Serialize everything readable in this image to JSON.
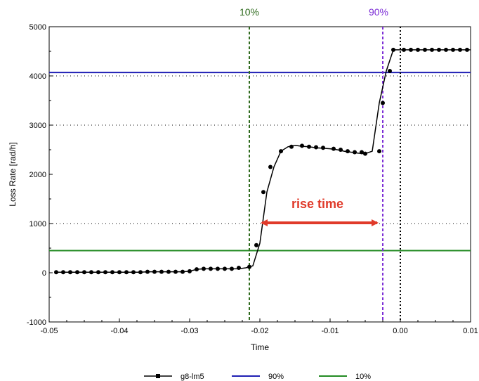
{
  "chart_data": {
    "type": "line",
    "title": "",
    "xlabel": "Time",
    "ylabel": "Loss Rate [rad/h]",
    "xlim": [
      -0.05,
      0.01
    ],
    "ylim": [
      -1000,
      5000
    ],
    "xticks": [
      -0.05,
      -0.04,
      -0.03,
      -0.02,
      -0.01,
      0.0,
      0.01
    ],
    "xtick_labels": [
      "-0.05",
      "-0.04",
      "-0.03",
      "-0.02",
      "-0.01",
      "0.00",
      "0.01"
    ],
    "yticks": [
      -1000,
      0,
      1000,
      2000,
      3000,
      4000,
      5000
    ],
    "ytick_labels": [
      "-1000",
      "0",
      "1000",
      "2000",
      "3000",
      "4000",
      "5000"
    ],
    "grid": "dotted horizontal lines at 1000, 3000 and 4000",
    "legend_position": "bottom-center",
    "series": [
      {
        "name": "g8-lm5",
        "color": "#000000",
        "marker": "circle",
        "x": [
          -0.049,
          -0.048,
          -0.047,
          -0.046,
          -0.045,
          -0.044,
          -0.043,
          -0.042,
          -0.041,
          -0.04,
          -0.039,
          -0.038,
          -0.037,
          -0.036,
          -0.035,
          -0.034,
          -0.033,
          -0.032,
          -0.031,
          -0.03,
          -0.029,
          -0.028,
          -0.027,
          -0.026,
          -0.025,
          -0.024,
          -0.023,
          -0.022,
          -0.021,
          -0.02,
          -0.019,
          -0.018,
          -0.017,
          -0.016,
          -0.015,
          -0.014,
          -0.013,
          -0.012,
          -0.011,
          -0.01,
          -0.009,
          -0.008,
          -0.007,
          -0.006,
          -0.005,
          -0.004,
          -0.003,
          -0.002,
          -0.001,
          0.0,
          0.001,
          0.002,
          0.003,
          0.004,
          0.005,
          0.006,
          0.007,
          0.008,
          0.009,
          0.01
        ],
        "y": [
          10,
          10,
          10,
          10,
          10,
          10,
          10,
          10,
          10,
          10,
          10,
          10,
          10,
          20,
          20,
          20,
          20,
          20,
          20,
          30,
          70,
          80,
          80,
          80,
          80,
          80,
          80,
          100,
          140,
          600,
          1640,
          2150,
          2470,
          2560,
          2590,
          2570,
          2560,
          2540,
          2530,
          2520,
          2500,
          2470,
          2450,
          2430,
          2420,
          2470,
          3450,
          4100,
          4530,
          4530,
          4530,
          4530,
          4530,
          4530,
          4530,
          4530,
          4530,
          4530,
          4530,
          4530
        ],
        "markers_x": [
          -0.049,
          -0.048,
          -0.047,
          -0.046,
          -0.045,
          -0.044,
          -0.043,
          -0.042,
          -0.041,
          -0.04,
          -0.039,
          -0.038,
          -0.037,
          -0.036,
          -0.035,
          -0.034,
          -0.033,
          -0.032,
          -0.031,
          -0.03,
          -0.029,
          -0.028,
          -0.027,
          -0.026,
          -0.025,
          -0.024,
          -0.023,
          -0.0215,
          -0.0205,
          -0.0195,
          -0.0185,
          -0.017,
          -0.0155,
          -0.014,
          -0.013,
          -0.012,
          -0.011,
          -0.0095,
          -0.0085,
          -0.0075,
          -0.0065,
          -0.0055,
          -0.005,
          -0.003,
          -0.0025,
          -0.0015,
          -0.001,
          0.0005,
          0.0015,
          0.0025,
          0.0035,
          0.0045,
          0.0055,
          0.0065,
          0.0075,
          0.0085,
          0.0095
        ],
        "markers_y": [
          10,
          10,
          10,
          10,
          10,
          10,
          10,
          10,
          10,
          10,
          10,
          10,
          10,
          20,
          20,
          20,
          20,
          20,
          20,
          30,
          70,
          80,
          80,
          80,
          80,
          80,
          100,
          120,
          560,
          1640,
          2150,
          2470,
          2560,
          2580,
          2560,
          2550,
          2540,
          2520,
          2500,
          2470,
          2450,
          2450,
          2420,
          2470,
          3450,
          4100,
          4530,
          4530,
          4530,
          4530,
          4530,
          4530,
          4530,
          4530,
          4530,
          4530,
          4530
        ]
      },
      {
        "name": "90%",
        "color": "#1f1fb4",
        "type": "hline",
        "y": 4070
      },
      {
        "name": "10%",
        "color": "#228b22",
        "type": "hline",
        "y": 450
      }
    ],
    "vlines": [
      {
        "x": -0.0215,
        "color": "#2f6b1e",
        "style": "dashed",
        "label": "10%"
      },
      {
        "x": -0.0025,
        "color": "#7d2fd6",
        "style": "dashed",
        "label": "90%"
      },
      {
        "x": 0.0,
        "color": "#000000",
        "style": "dotted"
      }
    ],
    "annotations": [
      {
        "text": "rise time",
        "color": "#e03a2a",
        "x_from": -0.0215,
        "x_to": -0.0025,
        "y": 1000
      }
    ],
    "legend": [
      {
        "label": "g8-lm5",
        "color": "#000000",
        "marker": "square"
      },
      {
        "label": "90%",
        "color": "#1f1fb4"
      },
      {
        "label": "10%",
        "color": "#228b22"
      }
    ]
  }
}
